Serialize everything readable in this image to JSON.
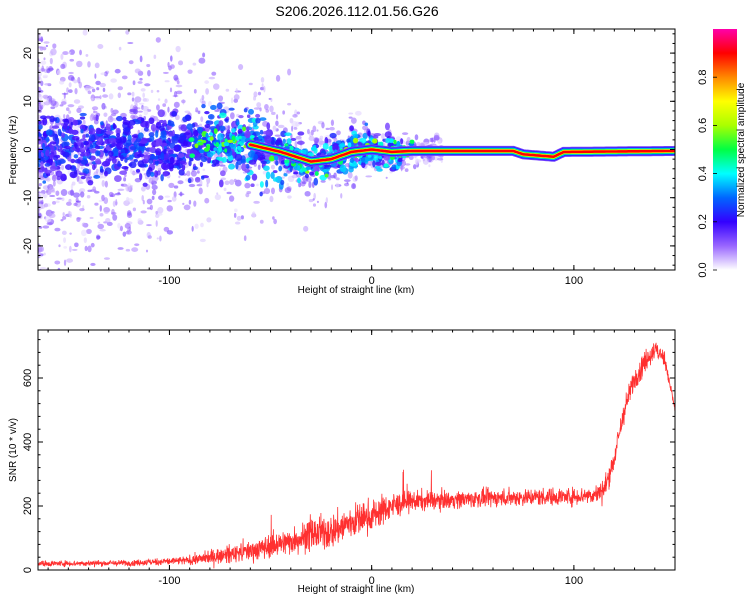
{
  "title": "S206.2026.112.01.56.G26",
  "chart_data": [
    {
      "type": "heatmap",
      "xlabel": "Height of straight line (km)",
      "ylabel": "Frequency (Hz)",
      "xlim": [
        -165,
        150
      ],
      "ylim": [
        -25,
        25
      ],
      "xticks": [
        -100,
        0,
        100
      ],
      "yticks": [
        -20,
        -10,
        0,
        10,
        20
      ],
      "colorbar": {
        "label": "Normalized spectral amplitude",
        "range": [
          0,
          1
        ],
        "ticks": [
          0.0,
          0.2,
          0.4,
          0.6,
          0.8
        ],
        "tick_labels": [
          "0.0",
          "0.2",
          "0.4",
          "0.6",
          "0.8"
        ],
        "colors": [
          "#ffffff",
          "#9966ff",
          "#3300ff",
          "#0066ff",
          "#00ffff",
          "#00ff44",
          "#aaff00",
          "#ffff00",
          "#ff8800",
          "#ff0000",
          "#ff00aa"
        ]
      },
      "ridge": [
        {
          "x": -165,
          "y": 0.0
        },
        {
          "x": -120,
          "y": 0.5
        },
        {
          "x": -80,
          "y": 1.5
        },
        {
          "x": -60,
          "y": 1.0
        },
        {
          "x": -45,
          "y": -0.5
        },
        {
          "x": -30,
          "y": -2.5
        },
        {
          "x": -20,
          "y": -2.0
        },
        {
          "x": -10,
          "y": -0.5
        },
        {
          "x": 0,
          "y": 0.0
        },
        {
          "x": 10,
          "y": -0.5
        },
        {
          "x": 20,
          "y": -0.3
        },
        {
          "x": 70,
          "y": -0.3
        },
        {
          "x": 75,
          "y": -1.0
        },
        {
          "x": 90,
          "y": -1.5
        },
        {
          "x": 95,
          "y": -0.5
        },
        {
          "x": 150,
          "y": -0.3
        }
      ]
    },
    {
      "type": "line",
      "xlabel": "Height of straight line (km)",
      "ylabel": "SNR (10 * v/v)",
      "xlim": [
        -165,
        150
      ],
      "ylim": [
        0,
        750
      ],
      "xticks": [
        -100,
        0,
        100
      ],
      "yticks": [
        0,
        200,
        400,
        600
      ],
      "series": [
        {
          "name": "SNR",
          "color": "#ff3030",
          "envelope_x": [
            -165,
            -120,
            -90,
            -80,
            -60,
            -40,
            -30,
            -20,
            -10,
            0,
            10,
            20,
            40,
            60,
            80,
            100,
            110,
            115,
            120,
            125,
            130,
            135,
            140,
            145,
            150
          ],
          "envelope_y": [
            20,
            22,
            30,
            40,
            60,
            90,
            110,
            120,
            150,
            170,
            200,
            215,
            220,
            225,
            228,
            230,
            235,
            250,
            350,
            500,
            600,
            650,
            690,
            660,
            500
          ],
          "noise_amplitude": [
            10,
            10,
            15,
            25,
            35,
            45,
            55,
            60,
            60,
            55,
            45,
            35,
            30,
            30,
            30,
            30,
            30,
            40,
            40,
            40,
            40,
            40,
            35,
            25,
            20
          ]
        }
      ]
    }
  ]
}
